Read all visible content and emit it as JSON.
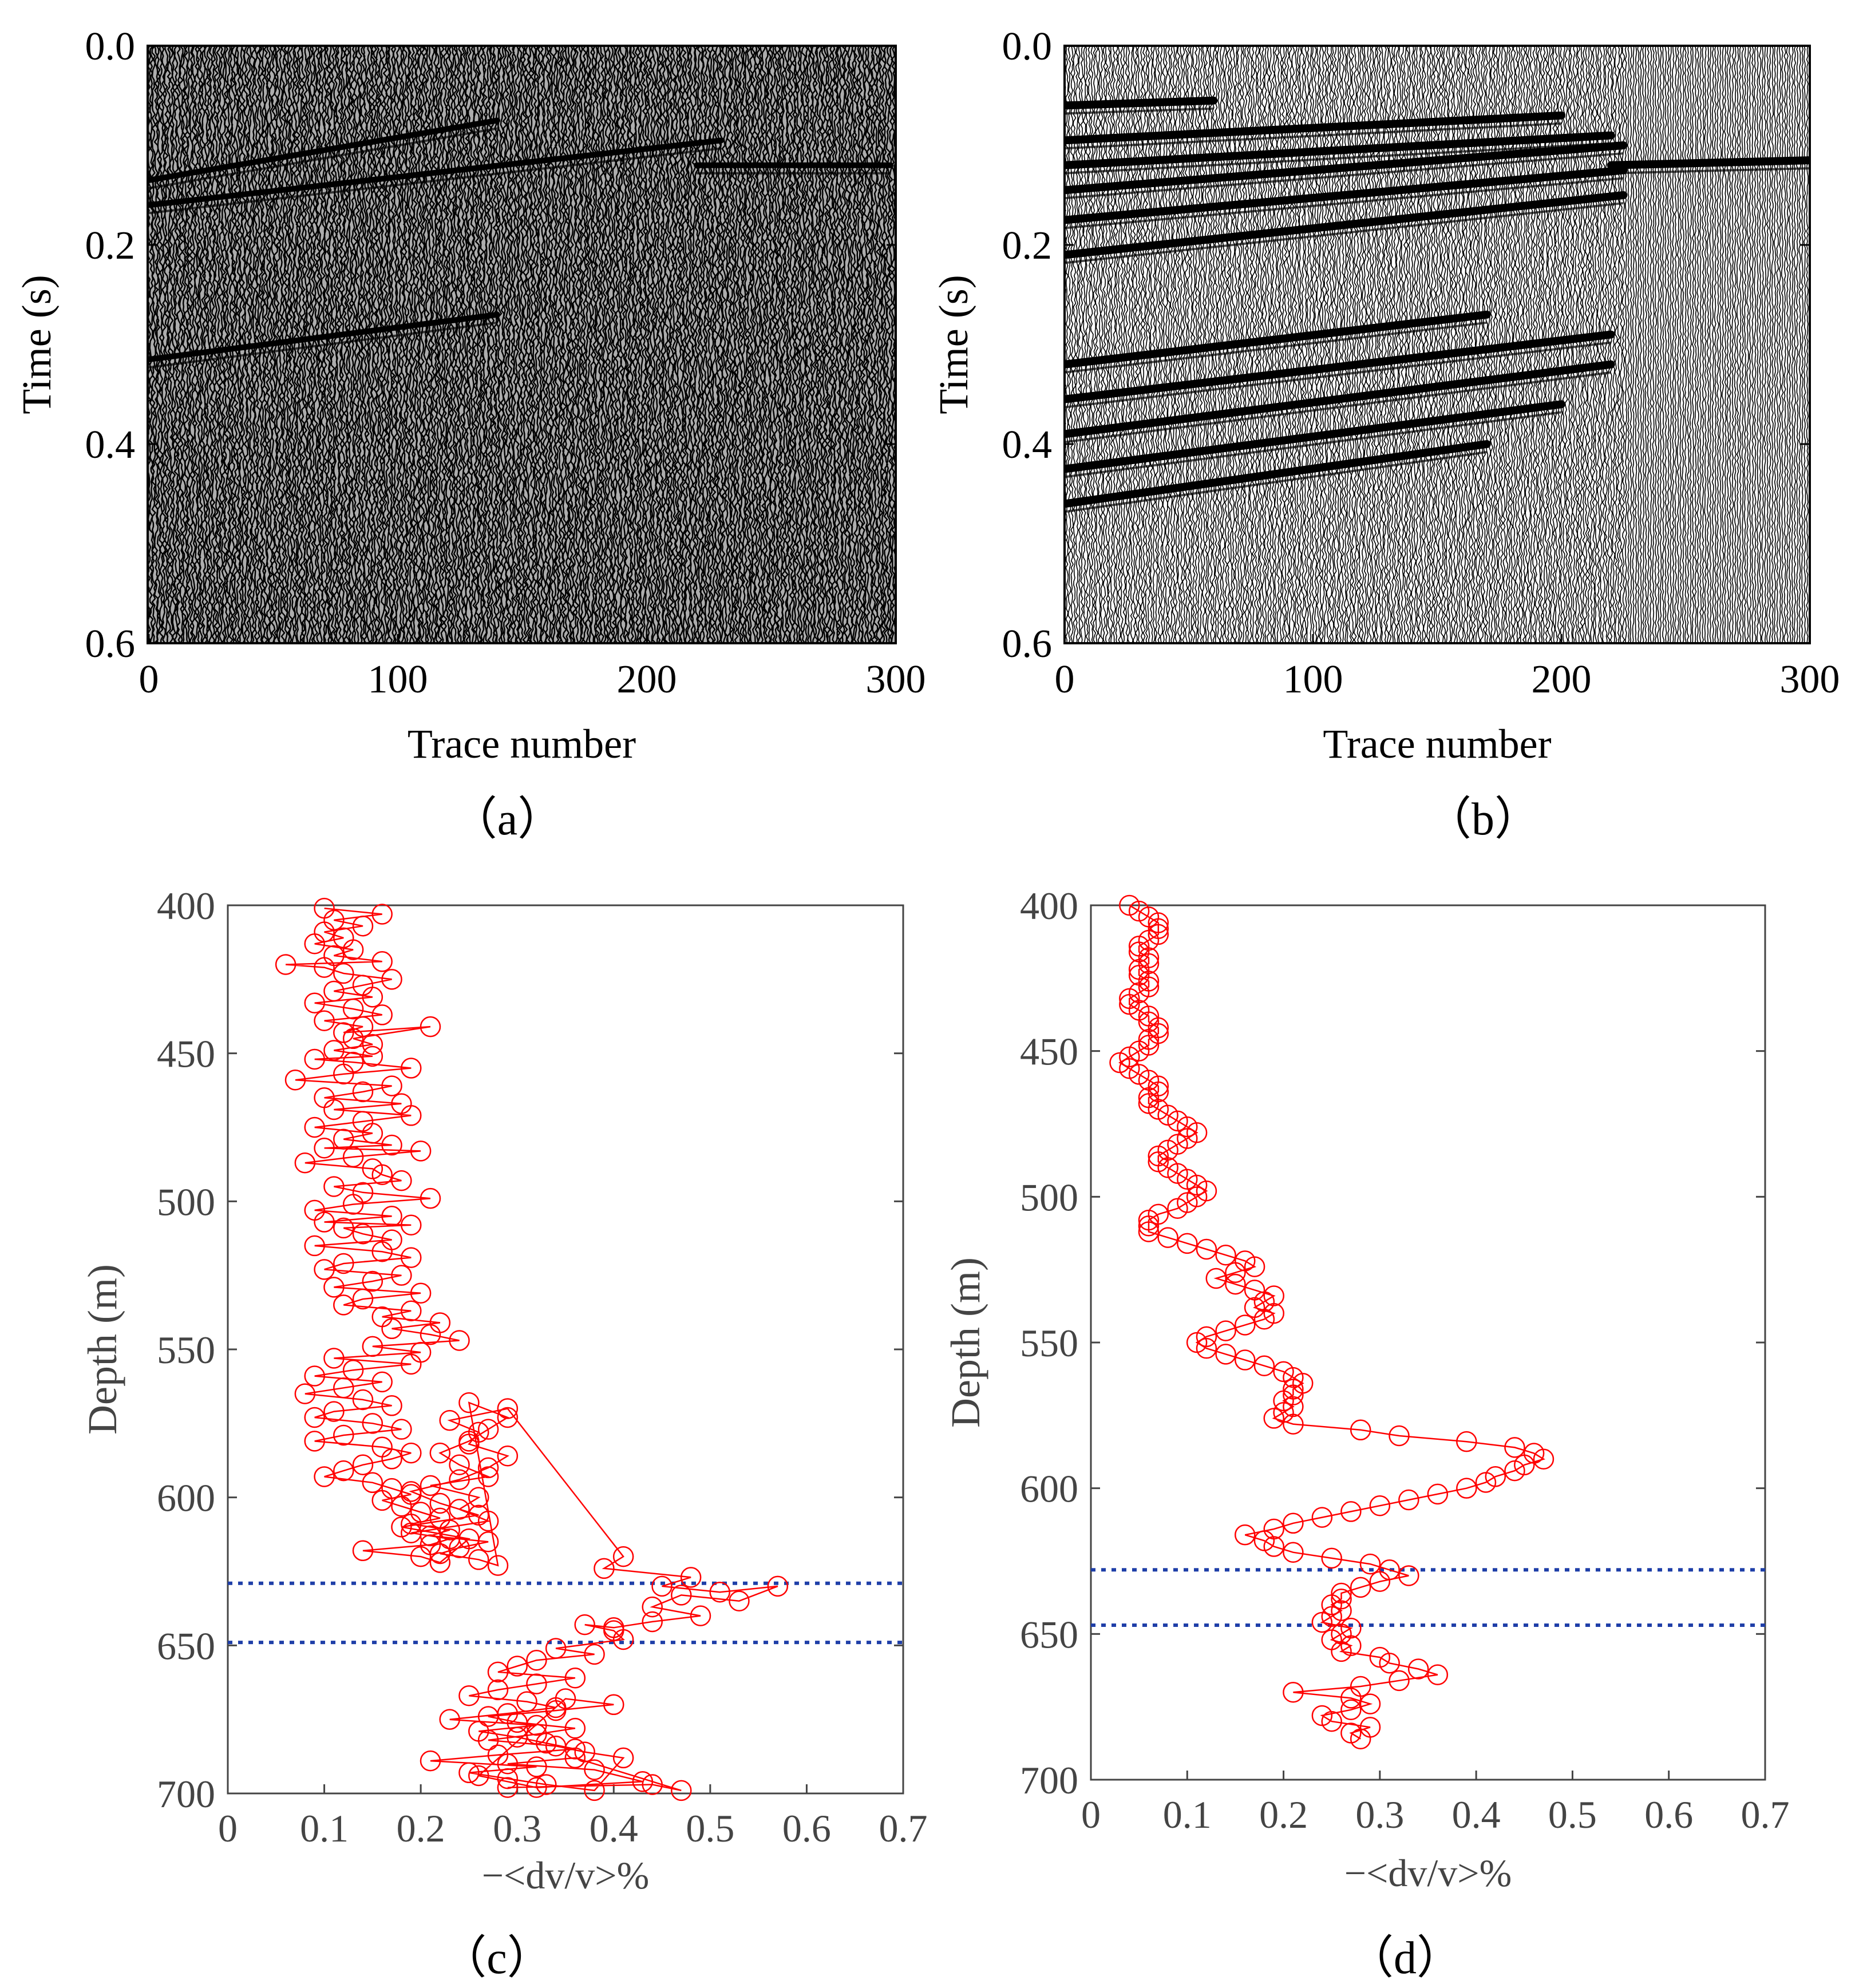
{
  "figure": {
    "colors": {
      "axis": "#000000",
      "axis_gray": "#444444",
      "seismic_ink": "#000000",
      "marker": "#ff0000",
      "guide_line": "#1f3fa8"
    }
  },
  "chart_data": [
    {
      "id": "a",
      "type": "heatmap",
      "subtitle": "（a）",
      "xlabel": "Trace number",
      "ylabel": "Time (s)",
      "xlim": [
        0,
        300
      ],
      "ylim": [
        0.6,
        0.0
      ],
      "xticks": [
        "0",
        "100",
        "200",
        "300"
      ],
      "yticks": [
        "0.0",
        "0.2",
        "0.4",
        "0.6"
      ],
      "xtick_values": [
        0,
        100,
        200,
        300
      ],
      "ytick_values": [
        0.0,
        0.2,
        0.4,
        0.6
      ],
      "events": [
        {
          "trace_start": 0,
          "trace_end": 140,
          "t_start": 0.135,
          "t_end": 0.075
        },
        {
          "trace_start": 0,
          "trace_end": 230,
          "t_start": 0.16,
          "t_end": 0.095
        },
        {
          "trace_start": 220,
          "trace_end": 298,
          "t_start": 0.12,
          "t_end": 0.12
        },
        {
          "trace_start": 0,
          "trace_end": 140,
          "t_start": 0.315,
          "t_end": 0.27
        }
      ]
    },
    {
      "id": "b",
      "type": "heatmap",
      "subtitle": "（b）",
      "xlabel": "Trace number",
      "ylabel": "Time (s)",
      "xlim": [
        0,
        300
      ],
      "ylim": [
        0.6,
        0.0
      ],
      "xticks": [
        "0",
        "100",
        "200",
        "300"
      ],
      "yticks": [
        "0.0",
        "0.2",
        "0.4",
        "0.6"
      ],
      "xtick_values": [
        0,
        100,
        200,
        300
      ],
      "ytick_values": [
        0.0,
        0.2,
        0.4,
        0.6
      ],
      "events": [
        {
          "trace_start": 0,
          "trace_end": 60,
          "t_start": 0.06,
          "t_end": 0.055
        },
        {
          "trace_start": 0,
          "trace_end": 200,
          "t_start": 0.095,
          "t_end": 0.07
        },
        {
          "trace_start": 0,
          "trace_end": 220,
          "t_start": 0.12,
          "t_end": 0.09
        },
        {
          "trace_start": 0,
          "trace_end": 225,
          "t_start": 0.145,
          "t_end": 0.1
        },
        {
          "trace_start": 0,
          "trace_end": 225,
          "t_start": 0.175,
          "t_end": 0.125
        },
        {
          "trace_start": 0,
          "trace_end": 225,
          "t_start": 0.21,
          "t_end": 0.15
        },
        {
          "trace_start": 220,
          "trace_end": 300,
          "t_start": 0.12,
          "t_end": 0.115
        },
        {
          "trace_start": 0,
          "trace_end": 170,
          "t_start": 0.32,
          "t_end": 0.27
        },
        {
          "trace_start": 0,
          "trace_end": 220,
          "t_start": 0.355,
          "t_end": 0.29
        },
        {
          "trace_start": 0,
          "trace_end": 220,
          "t_start": 0.39,
          "t_end": 0.32
        },
        {
          "trace_start": 0,
          "trace_end": 200,
          "t_start": 0.425,
          "t_end": 0.36
        },
        {
          "trace_start": 0,
          "trace_end": 170,
          "t_start": 0.46,
          "t_end": 0.4
        }
      ]
    },
    {
      "id": "c",
      "type": "line",
      "subtitle": "（c）",
      "xlabel": "−<dv/v>%",
      "ylabel": "Depth (m)",
      "xlim": [
        0,
        0.7
      ],
      "ylim": [
        700,
        400
      ],
      "xticks": [
        "0",
        "0.1",
        "0.2",
        "0.3",
        "0.4",
        "0.5",
        "0.6",
        "0.7"
      ],
      "yticks": [
        "400",
        "450",
        "500",
        "550",
        "600",
        "650",
        "700"
      ],
      "xtick_values": [
        0,
        0.1,
        0.2,
        0.3,
        0.4,
        0.5,
        0.6,
        0.7
      ],
      "ytick_values": [
        400,
        450,
        500,
        550,
        600,
        650,
        700
      ],
      "hlines": [
        629,
        649
      ],
      "series": [
        {
          "name": "dv/v",
          "x": [
            0.1,
            0.16,
            0.11,
            0.14,
            0.1,
            0.12,
            0.09,
            0.13,
            0.11,
            0.16,
            0.06,
            0.1,
            0.12,
            0.17,
            0.14,
            0.11,
            0.15,
            0.09,
            0.13,
            0.16,
            0.1,
            0.14,
            0.12,
            0.21,
            0.13,
            0.15,
            0.11,
            0.15,
            0.09,
            0.13,
            0.19,
            0.12,
            0.07,
            0.17,
            0.14,
            0.1,
            0.18,
            0.11,
            0.19,
            0.14,
            0.09,
            0.15,
            0.12,
            0.17,
            0.1,
            0.2,
            0.13,
            0.08,
            0.15,
            0.16,
            0.18,
            0.11,
            0.14,
            0.21,
            0.13,
            0.09,
            0.17,
            0.1,
            0.19,
            0.12,
            0.14,
            0.17,
            0.09,
            0.16,
            0.19,
            0.12,
            0.1,
            0.18,
            0.15,
            0.11,
            0.2,
            0.14,
            0.12,
            0.19,
            0.16,
            0.22,
            0.17,
            0.21,
            0.24,
            0.15,
            0.2,
            0.11,
            0.19,
            0.13,
            0.09,
            0.16,
            0.12,
            0.08,
            0.14,
            0.17,
            0.11,
            0.09,
            0.15,
            0.18,
            0.12,
            0.09,
            0.16,
            0.19,
            0.17,
            0.14,
            0.12,
            0.1,
            0.15,
            0.17,
            0.19,
            0.16,
            0.18,
            0.2,
            0.22,
            0.19,
            0.23,
            0.21,
            0.27,
            0.24,
            0.22,
            0.26,
            0.28,
            0.25,
            0.29,
            0.27,
            0.25,
            0.22,
            0.24,
            0.27,
            0.21,
            0.26,
            0.24,
            0.27,
            0.19,
            0.23,
            0.21,
            0.14,
            0.2,
            0.22,
            0.25,
            0.18,
            0.26,
            0.22,
            0.19,
            0.24,
            0.27,
            0.29,
            0.25,
            0.26,
            0.23,
            0.29,
            0.41,
            0.39,
            0.48,
            0.45,
            0.51,
            0.57,
            0.53,
            0.47,
            0.44,
            0.49,
            0.44,
            0.4,
            0.37,
            0.4,
            0.41,
            0.34,
            0.38,
            0.32,
            0.3,
            0.28,
            0.36,
            0.32,
            0.28,
            0.25,
            0.31,
            0.34,
            0.29,
            0.23,
            0.32,
            0.26,
            0.3,
            0.33,
            0.36,
            0.28,
            0.21,
            0.32,
            0.25,
            0.29,
            0.33,
            0.38,
            0.41,
            0.37,
            0.34,
            0.27,
            0.32,
            0.36,
            0.3,
            0.27,
            0.34,
            0.4,
            0.35,
            0.26,
            0.32,
            0.43,
            0.38,
            0.29,
            0.36,
            0.47,
            0.44,
            0.29
          ],
          "y": [
            401,
            403,
            405,
            407,
            409,
            411,
            413,
            415,
            417,
            419,
            420,
            421,
            423,
            425,
            427,
            429,
            431,
            433,
            435,
            437,
            439,
            441,
            443,
            441,
            445,
            447,
            449,
            451,
            452,
            453,
            455,
            457,
            459,
            461,
            463,
            465,
            467,
            469,
            471,
            473,
            475,
            477,
            479,
            481,
            482,
            483,
            485,
            487,
            489,
            491,
            493,
            495,
            497,
            499,
            501,
            503,
            505,
            507,
            508,
            509,
            511,
            513,
            515,
            517,
            519,
            521,
            523,
            525,
            527,
            529,
            531,
            533,
            535,
            537,
            539,
            541,
            543,
            545,
            547,
            549,
            551,
            553,
            555,
            557,
            559,
            561,
            563,
            565,
            567,
            569,
            571,
            573,
            575,
            577,
            579,
            581,
            583,
            585,
            587,
            589,
            591,
            593,
            595,
            597,
            599,
            601,
            603,
            605,
            607,
            609,
            611,
            613,
            615,
            617,
            619,
            621,
            623,
            568,
            573,
            577,
            581,
            585,
            589,
            593,
            596,
            600,
            604,
            608,
            612,
            614,
            616,
            618,
            620,
            622,
            614,
            610,
            606,
            602,
            598,
            594,
            590,
            586,
            582,
            578,
            574,
            570,
            620,
            624,
            627,
            630,
            632,
            630,
            635,
            633,
            637,
            640,
            642,
            644,
            643,
            645,
            648,
            651,
            653,
            655,
            657,
            659,
            661,
            663,
            665,
            667,
            669,
            671,
            673,
            675,
            677,
            679,
            681,
            683,
            685,
            687,
            689,
            691,
            693,
            695,
            697,
            699,
            688,
            686,
            684,
            682,
            680,
            678,
            676,
            674,
            672,
            670,
            668,
            694,
            698,
            696,
            692,
            690,
            688,
            699,
            697,
            698
          ]
        }
      ]
    },
    {
      "id": "d",
      "type": "line",
      "subtitle": "（d）",
      "xlabel": "−<dv/v>%",
      "ylabel": "Depth (m)",
      "xlim": [
        0,
        0.7
      ],
      "ylim": [
        700,
        400
      ],
      "xticks": [
        "0",
        "0.1",
        "0.2",
        "0.3",
        "0.4",
        "0.5",
        "0.6",
        "0.7"
      ],
      "yticks": [
        "400",
        "450",
        "500",
        "550",
        "600",
        "650",
        "700"
      ],
      "xtick_values": [
        0,
        0.1,
        0.2,
        0.3,
        0.4,
        0.5,
        0.6,
        0.7
      ],
      "ytick_values": [
        400,
        450,
        500,
        550,
        600,
        650,
        700
      ],
      "hlines": [
        628,
        647
      ],
      "series": [
        {
          "name": "dv/v",
          "x": [
            0.04,
            0.05,
            0.06,
            0.07,
            0.07,
            0.07,
            0.06,
            0.05,
            0.05,
            0.06,
            0.06,
            0.05,
            0.05,
            0.06,
            0.06,
            0.05,
            0.04,
            0.04,
            0.05,
            0.06,
            0.06,
            0.07,
            0.07,
            0.06,
            0.06,
            0.05,
            0.04,
            0.03,
            0.04,
            0.05,
            0.06,
            0.07,
            0.07,
            0.06,
            0.06,
            0.07,
            0.08,
            0.09,
            0.1,
            0.11,
            0.1,
            0.09,
            0.08,
            0.07,
            0.07,
            0.08,
            0.09,
            0.1,
            0.11,
            0.12,
            0.11,
            0.1,
            0.09,
            0.07,
            0.06,
            0.06,
            0.06,
            0.08,
            0.1,
            0.12,
            0.14,
            0.16,
            0.17,
            0.15,
            0.13,
            0.15,
            0.17,
            0.19,
            0.18,
            0.17,
            0.19,
            0.18,
            0.16,
            0.14,
            0.12,
            0.11,
            0.12,
            0.14,
            0.16,
            0.18,
            0.2,
            0.21,
            0.22,
            0.21,
            0.21,
            0.2,
            0.21,
            0.2,
            0.19,
            0.21,
            0.28,
            0.32,
            0.39,
            0.44,
            0.46,
            0.47,
            0.45,
            0.44,
            0.42,
            0.41,
            0.39,
            0.36,
            0.33,
            0.3,
            0.27,
            0.24,
            0.21,
            0.19,
            0.16,
            0.18,
            0.19,
            0.21,
            0.25,
            0.29,
            0.31,
            0.33,
            0.3,
            0.28,
            0.26,
            0.26,
            0.25,
            0.26,
            0.25,
            0.24,
            0.27,
            0.26,
            0.25,
            0.27,
            0.26,
            0.3,
            0.31,
            0.34,
            0.36,
            0.32,
            0.28,
            0.21,
            0.27,
            0.29,
            0.27,
            0.24,
            0.25,
            0.29,
            0.27,
            0.28
          ],
          "y": [
            400,
            402,
            404,
            406,
            408,
            410,
            412,
            414,
            416,
            418,
            420,
            422,
            424,
            426,
            428,
            430,
            432,
            434,
            436,
            438,
            440,
            442,
            444,
            446,
            448,
            450,
            452,
            454,
            456,
            458,
            460,
            462,
            464,
            466,
            468,
            470,
            472,
            474,
            476,
            478,
            480,
            482,
            484,
            486,
            488,
            490,
            492,
            494,
            496,
            498,
            500,
            502,
            504,
            506,
            508,
            510,
            512,
            514,
            516,
            518,
            520,
            522,
            524,
            526,
            528,
            530,
            532,
            534,
            536,
            538,
            540,
            542,
            544,
            546,
            548,
            550,
            552,
            554,
            556,
            558,
            560,
            562,
            564,
            566,
            568,
            570,
            572,
            574,
            576,
            578,
            580,
            582,
            584,
            586,
            588,
            590,
            592,
            594,
            596,
            598,
            600,
            602,
            604,
            606,
            608,
            610,
            612,
            614,
            616,
            618,
            620,
            622,
            624,
            626,
            628,
            630,
            632,
            634,
            636,
            638,
            640,
            642,
            644,
            646,
            648,
            650,
            652,
            654,
            656,
            658,
            660,
            662,
            664,
            666,
            668,
            670,
            672,
            674,
            676,
            678,
            680,
            682,
            684,
            686
          ]
        }
      ]
    }
  ]
}
